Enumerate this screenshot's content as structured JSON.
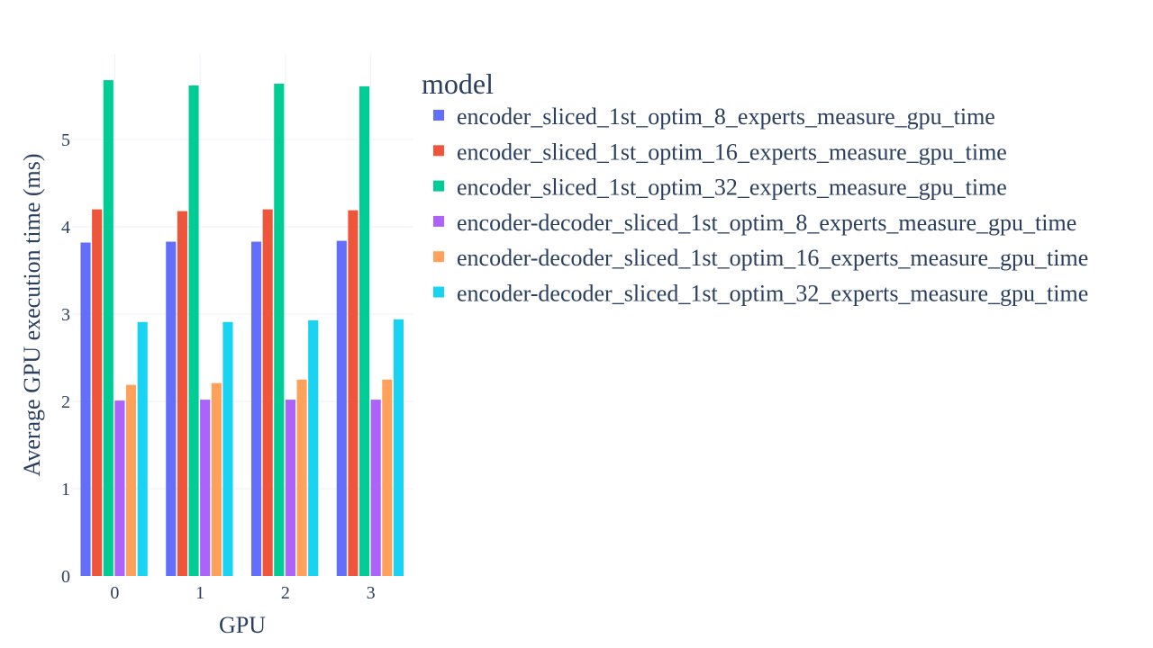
{
  "chart_data": {
    "type": "bar",
    "xlabel": "GPU",
    "ylabel": "Average GPU execution time (ms)",
    "categories": [
      "0",
      "1",
      "2",
      "3"
    ],
    "ylim": [
      0,
      6.0
    ],
    "yticks": [
      0,
      1,
      2,
      3,
      4,
      5
    ],
    "legend_title": "model",
    "legend_position": "top-right",
    "grid": true,
    "series": [
      {
        "name": "encoder_sliced_1st_optim_8_experts_measure_gpu_time",
        "color": "#636efa",
        "values": [
          3.82,
          3.83,
          3.83,
          3.84
        ]
      },
      {
        "name": "encoder_sliced_1st_optim_16_experts_measure_gpu_time",
        "color": "#ef553b",
        "values": [
          4.2,
          4.18,
          4.2,
          4.19
        ]
      },
      {
        "name": "encoder_sliced_1st_optim_32_experts_measure_gpu_time",
        "color": "#00cc96",
        "values": [
          5.68,
          5.62,
          5.64,
          5.61
        ]
      },
      {
        "name": "encoder-decoder_sliced_1st_optim_8_experts_measure_gpu_time",
        "color": "#ab63fa",
        "values": [
          2.01,
          2.02,
          2.02,
          2.02
        ]
      },
      {
        "name": "encoder-decoder_sliced_1st_optim_16_experts_measure_gpu_time",
        "color": "#ffa15a",
        "values": [
          2.19,
          2.21,
          2.25,
          2.25
        ]
      },
      {
        "name": "encoder-decoder_sliced_1st_optim_32_experts_measure_gpu_time",
        "color": "#19d3f3",
        "values": [
          2.91,
          2.91,
          2.93,
          2.94
        ]
      }
    ]
  }
}
